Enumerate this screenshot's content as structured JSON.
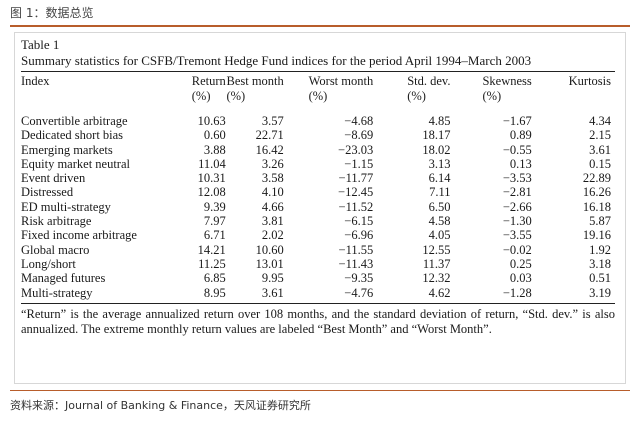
{
  "figure_title": "图 1：数据总览",
  "source": "资料来源：Journal of Banking & Finance，天风证券研究所",
  "table": {
    "label": "Table 1",
    "caption": "Summary statistics for CSFB/Tremont Hedge Fund indices for the period April 1994–March 2003",
    "headers": {
      "index": "Index",
      "return": "Return",
      "best": "Best month",
      "worst": "Worst month",
      "std": "Std. dev.",
      "skew": "Skewness",
      "kurt": "Kurtosis"
    },
    "units": {
      "return": "(%)",
      "best": "(%)",
      "worst": "(%)",
      "std": "(%)",
      "skew": "(%)"
    },
    "rows": [
      [
        "Convertible arbitrage",
        "10.63",
        "3.57",
        "−4.68",
        "4.85",
        "−1.67",
        "4.34"
      ],
      [
        "Dedicated short bias",
        "0.60",
        "22.71",
        "−8.69",
        "18.17",
        "0.89",
        "2.15"
      ],
      [
        "Emerging markets",
        "3.88",
        "16.42",
        "−23.03",
        "18.02",
        "−0.55",
        "3.61"
      ],
      [
        "Equity market neutral",
        "11.04",
        "3.26",
        "−1.15",
        "3.13",
        "0.13",
        "0.15"
      ],
      [
        "Event driven",
        "10.31",
        "3.58",
        "−11.77",
        "6.14",
        "−3.53",
        "22.89"
      ],
      [
        "Distressed",
        "12.08",
        "4.10",
        "−12.45",
        "7.11",
        "−2.81",
        "16.26"
      ],
      [
        "ED multi-strategy",
        "9.39",
        "4.66",
        "−11.52",
        "6.50",
        "−2.66",
        "16.18"
      ],
      [
        "Risk arbitrage",
        "7.97",
        "3.81",
        "−6.15",
        "4.58",
        "−1.30",
        "5.87"
      ],
      [
        "Fixed income arbitrage",
        "6.71",
        "2.02",
        "−6.96",
        "4.05",
        "−3.55",
        "19.16"
      ],
      [
        "Global macro",
        "14.21",
        "10.60",
        "−11.55",
        "12.55",
        "−0.02",
        "1.92"
      ],
      [
        "Long/short",
        "11.25",
        "13.01",
        "−11.43",
        "11.37",
        "0.25",
        "3.18"
      ],
      [
        "Managed futures",
        "6.85",
        "9.95",
        "−9.35",
        "12.32",
        "0.03",
        "0.51"
      ],
      [
        "Multi-strategy",
        "8.95",
        "3.61",
        "−4.76",
        "4.62",
        "−1.28",
        "3.19"
      ]
    ],
    "note": "“Return” is the average annualized return over 108 months, and the standard deviation of return, “Std. dev.” is also annualized. The extreme monthly return values are labeled “Best Month” and “Worst Month”."
  }
}
